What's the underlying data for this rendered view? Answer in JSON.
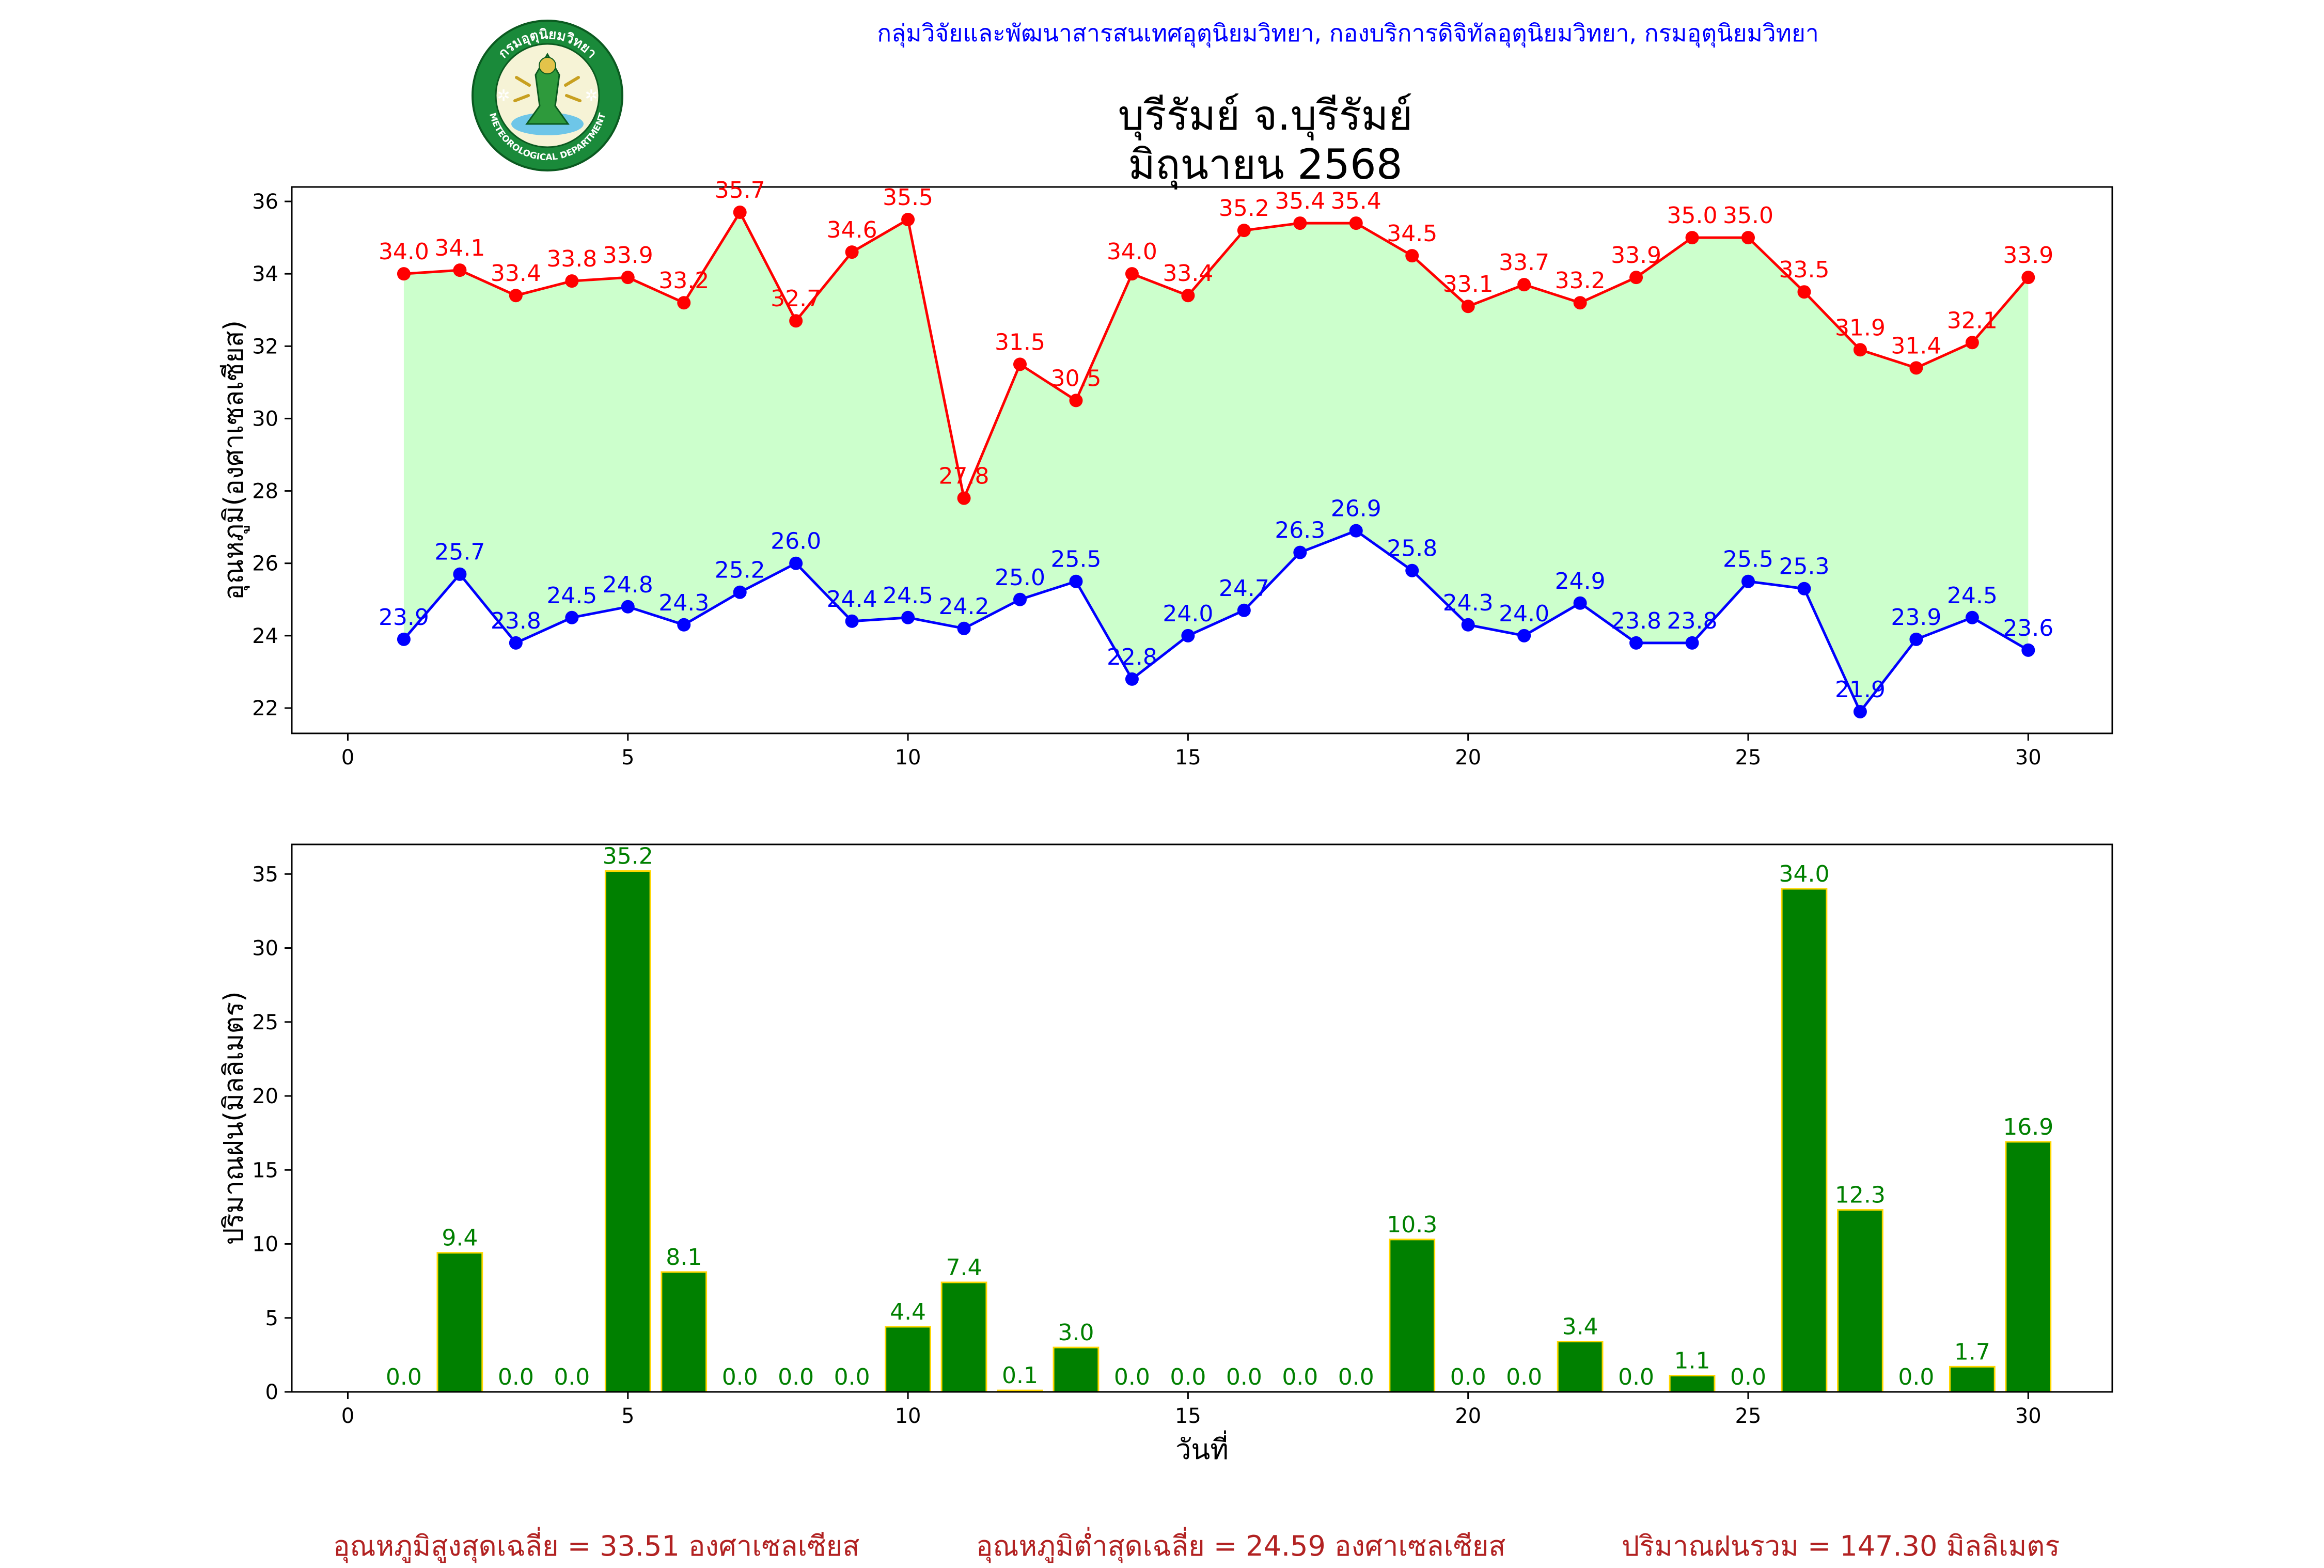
{
  "header": {
    "credit": "กลุ่มวิจัยและพัฒนาสารสนเทศอุตุนิยมวิทยา, กองบริการดิจิทัลอุตุนิยมวิทยา, กรมอุตุนิยมวิทยา",
    "title_line1": "บุรีรัมย์ จ.บุรีรัมย์",
    "title_line2": "มิถุนายน 2568",
    "logo_text_top": "กรมอุตุนิยมวิทยา",
    "logo_text_bottom": "METEOROLOGICAL DEPARTMENT"
  },
  "colors": {
    "max_line": "#ff0000",
    "min_line": "#0000ff",
    "fill": "#ccffcc",
    "bar": "#008000",
    "bar_edge": "#ffd700",
    "bar_label": "#008000",
    "summary": "#b22222",
    "credit": "#0000ff"
  },
  "chart_data": [
    {
      "type": "line",
      "ylabel": "อุณหภูมิ(องศาเซลเซียส)",
      "xlim": [
        -1,
        31.5
      ],
      "ylim": [
        21.3,
        36.4
      ],
      "xticks": [
        0,
        5,
        10,
        15,
        20,
        25,
        30
      ],
      "yticks": [
        22,
        24,
        26,
        28,
        30,
        32,
        34,
        36
      ],
      "x": [
        1,
        2,
        3,
        4,
        5,
        6,
        7,
        8,
        9,
        10,
        11,
        12,
        13,
        14,
        15,
        16,
        17,
        18,
        19,
        20,
        21,
        22,
        23,
        24,
        25,
        26,
        27,
        28,
        29,
        30
      ],
      "series": [
        {
          "key": "max",
          "values": [
            34.0,
            34.1,
            33.4,
            33.8,
            33.9,
            33.2,
            35.7,
            32.7,
            34.6,
            35.5,
            27.8,
            31.5,
            30.5,
            34.0,
            33.4,
            35.2,
            35.4,
            35.4,
            34.5,
            33.1,
            33.7,
            33.2,
            33.9,
            35.0,
            35.0,
            33.5,
            31.9,
            31.4,
            32.1,
            33.9
          ]
        },
        {
          "key": "min",
          "values": [
            23.9,
            25.7,
            23.8,
            24.5,
            24.8,
            24.3,
            25.2,
            26.0,
            24.4,
            24.5,
            24.2,
            25.0,
            25.5,
            22.8,
            24.0,
            24.7,
            26.3,
            26.9,
            25.8,
            24.3,
            24.0,
            24.9,
            23.8,
            23.8,
            25.5,
            25.3,
            21.9,
            23.9,
            24.5,
            23.6
          ]
        }
      ],
      "grid": false,
      "fill_between": true
    },
    {
      "type": "bar",
      "xlabel": "วันที่",
      "ylabel": "ปริมาณฝน(มิลลิเมตร)",
      "xlim": [
        -1,
        31.5
      ],
      "ylim": [
        0,
        37
      ],
      "xticks": [
        0,
        5,
        10,
        15,
        20,
        25,
        30
      ],
      "yticks": [
        0,
        5,
        10,
        15,
        20,
        25,
        30,
        35
      ],
      "x": [
        1,
        2,
        3,
        4,
        5,
        6,
        7,
        8,
        9,
        10,
        11,
        12,
        13,
        14,
        15,
        16,
        17,
        18,
        19,
        20,
        21,
        22,
        23,
        24,
        25,
        26,
        27,
        28,
        29,
        30
      ],
      "values": [
        0.0,
        9.4,
        0.0,
        0.0,
        35.2,
        8.1,
        0.0,
        0.0,
        0.0,
        4.4,
        7.4,
        0.1,
        3.0,
        0.0,
        0.0,
        0.0,
        0.0,
        0.0,
        10.3,
        0.0,
        0.0,
        3.4,
        0.0,
        1.1,
        0.0,
        34.0,
        12.3,
        0.0,
        1.7,
        16.9
      ],
      "grid": false
    }
  ],
  "summary": {
    "avg_max": "อุณหภูมิสูงสุดเฉลี่ย = 33.51 องศาเซลเซียส",
    "avg_min": "อุณหภูมิต่ำสุดเฉลี่ย = 24.59 องศาเซลเซียส",
    "total_rain": "ปริมาณฝนรวม = 147.30 มิลลิเมตร"
  }
}
